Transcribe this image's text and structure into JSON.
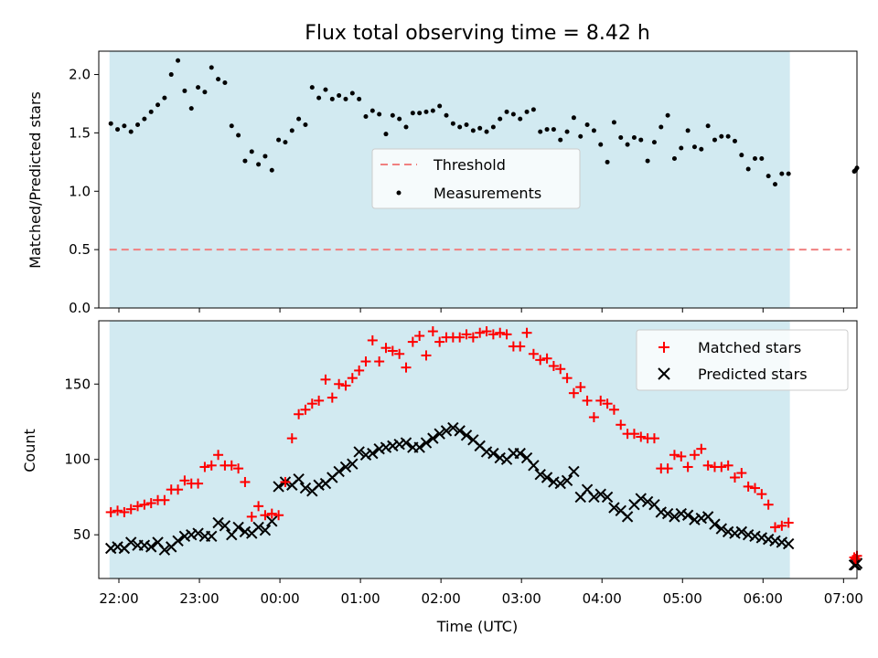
{
  "chart_data": [
    {
      "type": "scatter",
      "title": "Flux total observing time = 8.42 h",
      "xlabel": "",
      "ylabel": "Matched/Predicted stars",
      "x_ticks": [
        "22:00",
        "23:00",
        "00:00",
        "01:00",
        "02:00",
        "03:00",
        "04:00",
        "05:00",
        "06:00",
        "07:00"
      ],
      "x_domain_minutes": [
        -135,
        430
      ],
      "ylim": [
        0,
        2.2
      ],
      "y_ticks": [
        "0.0",
        "0.5",
        "1.0",
        "1.5",
        "2.0"
      ],
      "y_tick_values": [
        0,
        0.5,
        1.0,
        1.5,
        2.0
      ],
      "shaded_span_minutes": [
        -127,
        380
      ],
      "shade_color": "#add8e6",
      "threshold": {
        "name": "Threshold",
        "value": 0.5,
        "color": "#f08080",
        "x_range_minutes": [
          -127,
          425
        ]
      },
      "legend": {
        "placement": "center",
        "entries": [
          "Threshold",
          "Measurements"
        ]
      },
      "series": [
        {
          "name": "Measurements",
          "color": "#000000",
          "marker": "dot",
          "x_minutes": [
            -126,
            -121,
            -116,
            -111,
            -106,
            -101,
            -96,
            -91,
            -86,
            -81,
            -76,
            -71,
            -66,
            -61,
            -56,
            -51,
            -46,
            -41,
            -36,
            -31,
            -26,
            -21,
            -16,
            -11,
            -6,
            -1,
            4,
            9,
            14,
            19,
            24,
            29,
            34,
            39,
            44,
            49,
            54,
            59,
            64,
            69,
            74,
            79,
            84,
            89,
            94,
            99,
            104,
            109,
            114,
            119,
            124,
            129,
            134,
            139,
            144,
            149,
            154,
            159,
            164,
            169,
            174,
            179,
            184,
            189,
            194,
            199,
            204,
            209,
            214,
            219,
            224,
            229,
            234,
            239,
            244,
            249,
            254,
            259,
            264,
            269,
            274,
            279,
            284,
            289,
            294,
            299,
            304,
            309,
            314,
            319,
            324,
            329,
            334,
            339,
            344,
            349,
            354,
            359,
            364,
            369,
            374,
            379,
            428,
            430,
            429
          ],
          "values": [
            1.58,
            1.53,
            1.56,
            1.51,
            1.57,
            1.62,
            1.68,
            1.74,
            1.8,
            2.0,
            2.12,
            1.86,
            1.71,
            1.89,
            1.85,
            2.06,
            1.96,
            1.93,
            1.56,
            1.48,
            1.26,
            1.34,
            1.23,
            1.3,
            1.18,
            1.44,
            1.42,
            1.52,
            1.62,
            1.57,
            1.89,
            1.8,
            1.87,
            1.79,
            1.82,
            1.79,
            1.84,
            1.79,
            1.64,
            1.69,
            1.66,
            1.49,
            1.65,
            1.62,
            1.55,
            1.67,
            1.67,
            1.68,
            1.69,
            1.73,
            1.65,
            1.58,
            1.55,
            1.57,
            1.52,
            1.54,
            1.51,
            1.55,
            1.62,
            1.68,
            1.66,
            1.62,
            1.68,
            1.7,
            1.51,
            1.53,
            1.53,
            1.44,
            1.51,
            1.63,
            1.47,
            1.57,
            1.52,
            1.4,
            1.25,
            1.59,
            1.46,
            1.4,
            1.46,
            1.44,
            1.26,
            1.42,
            1.55,
            1.65,
            1.28,
            1.37,
            1.52,
            1.38,
            1.36,
            1.56,
            1.44,
            1.47,
            1.47,
            1.43,
            1.31,
            1.19,
            1.28,
            1.28,
            1.13,
            1.06,
            1.15,
            1.15,
            1.17,
            1.2,
            1.18
          ]
        }
      ]
    },
    {
      "type": "scatter",
      "title": "",
      "xlabel": "Time (UTC)",
      "ylabel": "Count",
      "x_ticks": [
        "22:00",
        "23:00",
        "00:00",
        "01:00",
        "02:00",
        "03:00",
        "04:00",
        "05:00",
        "06:00",
        "07:00"
      ],
      "x_domain_minutes": [
        -135,
        430
      ],
      "ylim": [
        21,
        192
      ],
      "y_ticks": [
        "50",
        "100",
        "150"
      ],
      "y_tick_values": [
        50,
        100,
        150
      ],
      "shaded_span_minutes": [
        -127,
        380
      ],
      "shade_color": "#add8e6",
      "legend": {
        "placement": "top-right",
        "entries": [
          "Matched stars",
          "Predicted stars"
        ]
      },
      "series": [
        {
          "name": "Matched stars",
          "color": "#ff0000",
          "marker": "plus",
          "x_minutes": [
            -126,
            -121,
            -116,
            -111,
            -106,
            -101,
            -96,
            -91,
            -86,
            -81,
            -76,
            -71,
            -66,
            -61,
            -56,
            -51,
            -46,
            -41,
            -36,
            -31,
            -26,
            -21,
            -16,
            -11,
            -6,
            -1,
            4,
            9,
            14,
            19,
            24,
            29,
            34,
            39,
            44,
            49,
            54,
            59,
            64,
            69,
            74,
            79,
            84,
            89,
            94,
            99,
            104,
            109,
            114,
            119,
            124,
            129,
            134,
            139,
            144,
            149,
            154,
            159,
            164,
            169,
            174,
            179,
            184,
            189,
            194,
            199,
            204,
            209,
            214,
            219,
            224,
            229,
            234,
            239,
            244,
            249,
            254,
            259,
            264,
            269,
            274,
            279,
            284,
            289,
            294,
            299,
            304,
            309,
            314,
            319,
            324,
            329,
            334,
            339,
            344,
            349,
            354,
            359,
            364,
            369,
            374,
            379,
            428,
            430,
            429
          ],
          "values": [
            65,
            66,
            65,
            67,
            69,
            70,
            71,
            73,
            73,
            80,
            80,
            86,
            84,
            84,
            95,
            96,
            103,
            96,
            96,
            94,
            85,
            62,
            69,
            63,
            64,
            63,
            85,
            114,
            130,
            133,
            137,
            139,
            153,
            141,
            150,
            149,
            154,
            159,
            165,
            179,
            165,
            174,
            172,
            170,
            161,
            178,
            182,
            169,
            185,
            178,
            181,
            181,
            181,
            183,
            181,
            184,
            185,
            183,
            184,
            183,
            175,
            175,
            184,
            170,
            166,
            167,
            162,
            160,
            154,
            144,
            148,
            139,
            128,
            139,
            137,
            133,
            123,
            117,
            117,
            115,
            114,
            114,
            94,
            94,
            103,
            102,
            95,
            103,
            107,
            96,
            95,
            95,
            96,
            88,
            91,
            82,
            81,
            77,
            70,
            55,
            56,
            58,
            35,
            36,
            34
          ]
        },
        {
          "name": "Predicted stars",
          "color": "#000000",
          "marker": "x",
          "x_minutes": [
            -126,
            -121,
            -116,
            -111,
            -106,
            -101,
            -96,
            -91,
            -86,
            -81,
            -76,
            -71,
            -66,
            -61,
            -56,
            -51,
            -46,
            -41,
            -36,
            -31,
            -26,
            -21,
            -16,
            -11,
            -6,
            -1,
            4,
            9,
            14,
            19,
            24,
            29,
            34,
            39,
            44,
            49,
            54,
            59,
            64,
            69,
            74,
            79,
            84,
            89,
            94,
            99,
            104,
            109,
            114,
            119,
            124,
            129,
            134,
            139,
            144,
            149,
            154,
            159,
            164,
            169,
            174,
            179,
            184,
            189,
            194,
            199,
            204,
            209,
            214,
            219,
            224,
            229,
            234,
            239,
            244,
            249,
            254,
            259,
            264,
            269,
            274,
            279,
            284,
            289,
            294,
            299,
            304,
            309,
            314,
            319,
            324,
            329,
            334,
            339,
            344,
            349,
            354,
            359,
            364,
            369,
            374,
            379,
            428,
            430,
            429
          ],
          "values": [
            41,
            42,
            41,
            45,
            43,
            43,
            42,
            45,
            40,
            42,
            46,
            49,
            50,
            51,
            49,
            49,
            58,
            56,
            50,
            55,
            52,
            51,
            55,
            53,
            59,
            82,
            85,
            83,
            87,
            81,
            79,
            83,
            84,
            88,
            92,
            95,
            97,
            105,
            103,
            104,
            107,
            108,
            109,
            110,
            111,
            108,
            108,
            111,
            114,
            117,
            119,
            121,
            119,
            116,
            113,
            109,
            105,
            104,
            101,
            100,
            104,
            104,
            101,
            96,
            90,
            88,
            85,
            84,
            86,
            92,
            75,
            80,
            75,
            77,
            75,
            68,
            66,
            62,
            70,
            74,
            72,
            70,
            65,
            64,
            62,
            64,
            63,
            60,
            61,
            62,
            57,
            54,
            52,
            51,
            52,
            50,
            49,
            48,
            47,
            46,
            45,
            44,
            30,
            31,
            30
          ]
        }
      ]
    }
  ]
}
